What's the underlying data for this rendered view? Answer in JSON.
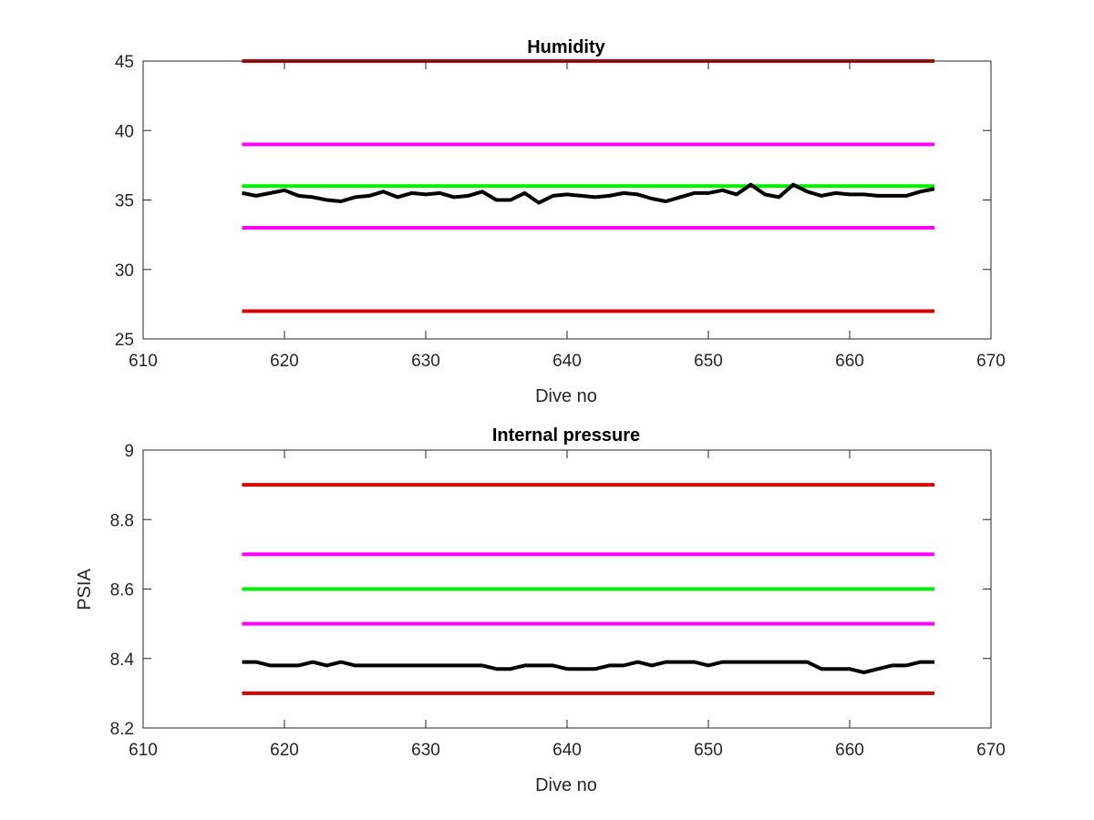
{
  "chart_data": [
    {
      "type": "line",
      "title": "Humidity",
      "xlabel": "Dive no",
      "ylabel": "",
      "xlim": [
        610,
        670
      ],
      "ylim": [
        25,
        45
      ],
      "xticks": [
        "610",
        "620",
        "630",
        "640",
        "650",
        "660",
        "670"
      ],
      "yticks": [
        "25",
        "30",
        "35",
        "40",
        "45"
      ],
      "grid": false,
      "reference_lines": [
        {
          "color": "#d40000",
          "y": 45,
          "x_range": [
            617,
            666
          ]
        },
        {
          "color": "#ff00ff",
          "y": 39,
          "x_range": [
            617,
            666
          ]
        },
        {
          "color": "#00ee00",
          "y": 36,
          "x_range": [
            617,
            666
          ]
        },
        {
          "color": "#ff00ff",
          "y": 33,
          "x_range": [
            617,
            666
          ]
        },
        {
          "color": "#d40000",
          "y": 27,
          "x_range": [
            617,
            666
          ]
        }
      ],
      "series": [
        {
          "color": "#000000",
          "x": [
            617,
            618,
            619,
            620,
            621,
            622,
            623,
            624,
            625,
            626,
            627,
            628,
            629,
            630,
            631,
            632,
            633,
            634,
            635,
            636,
            637,
            638,
            639,
            640,
            641,
            642,
            643,
            644,
            645,
            646,
            647,
            648,
            649,
            650,
            651,
            652,
            653,
            654,
            655,
            656,
            657,
            658,
            659,
            660,
            661,
            662,
            663,
            664,
            665,
            666
          ],
          "y": [
            35.5,
            35.3,
            35.5,
            35.7,
            35.3,
            35.2,
            35.0,
            34.9,
            35.2,
            35.3,
            35.6,
            35.2,
            35.5,
            35.4,
            35.5,
            35.2,
            35.3,
            35.6,
            35.0,
            35.0,
            35.5,
            34.8,
            35.3,
            35.4,
            35.3,
            35.2,
            35.3,
            35.5,
            35.4,
            35.1,
            34.9,
            35.2,
            35.5,
            35.5,
            35.7,
            35.4,
            36.1,
            35.4,
            35.2,
            36.1,
            35.6,
            35.3,
            35.5,
            35.4,
            35.4,
            35.3,
            35.3,
            35.3,
            35.6,
            35.8
          ]
        }
      ]
    },
    {
      "type": "line",
      "title": "Internal pressure",
      "xlabel": "Dive no",
      "ylabel": "PSIA",
      "xlim": [
        610,
        670
      ],
      "ylim": [
        8.2,
        9.0
      ],
      "xticks": [
        "610",
        "620",
        "630",
        "640",
        "650",
        "660",
        "670"
      ],
      "yticks": [
        "8.2",
        "8.4",
        "8.6",
        "8.8",
        "9"
      ],
      "grid": false,
      "reference_lines": [
        {
          "color": "#d40000",
          "y": 8.9,
          "x_range": [
            617,
            666
          ]
        },
        {
          "color": "#ff00ff",
          "y": 8.7,
          "x_range": [
            617,
            666
          ]
        },
        {
          "color": "#00ee00",
          "y": 8.6,
          "x_range": [
            617,
            666
          ]
        },
        {
          "color": "#ff00ff",
          "y": 8.5,
          "x_range": [
            617,
            666
          ]
        },
        {
          "color": "#d40000",
          "y": 8.3,
          "x_range": [
            617,
            666
          ]
        }
      ],
      "series": [
        {
          "color": "#000000",
          "x": [
            617,
            618,
            619,
            620,
            621,
            622,
            623,
            624,
            625,
            626,
            627,
            628,
            629,
            630,
            631,
            632,
            633,
            634,
            635,
            636,
            637,
            638,
            639,
            640,
            641,
            642,
            643,
            644,
            645,
            646,
            647,
            648,
            649,
            650,
            651,
            652,
            653,
            654,
            655,
            656,
            657,
            658,
            659,
            660,
            661,
            662,
            663,
            664,
            665,
            666
          ],
          "y": [
            8.39,
            8.39,
            8.38,
            8.38,
            8.38,
            8.39,
            8.38,
            8.39,
            8.38,
            8.38,
            8.38,
            8.38,
            8.38,
            8.38,
            8.38,
            8.38,
            8.38,
            8.38,
            8.37,
            8.37,
            8.38,
            8.38,
            8.38,
            8.37,
            8.37,
            8.37,
            8.38,
            8.38,
            8.39,
            8.38,
            8.39,
            8.39,
            8.39,
            8.38,
            8.39,
            8.39,
            8.39,
            8.39,
            8.39,
            8.39,
            8.39,
            8.37,
            8.37,
            8.37,
            8.36,
            8.37,
            8.38,
            8.38,
            8.39,
            8.39
          ]
        }
      ]
    }
  ]
}
